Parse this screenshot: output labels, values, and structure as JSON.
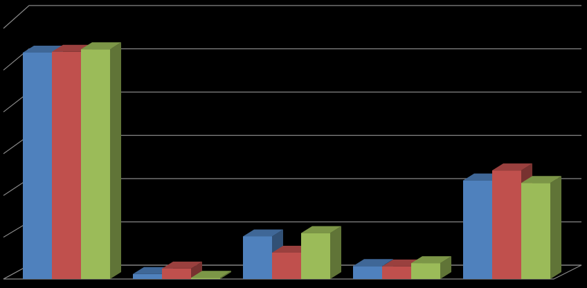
{
  "chart_data": {
    "type": "bar3d",
    "categories": [
      null,
      null,
      null,
      null,
      null
    ],
    "series": [
      {
        "color": "#4f81bd",
        "values": [
          5.42,
          0.12,
          1.02,
          0.31,
          2.36
        ]
      },
      {
        "color": "#c0504d",
        "values": [
          5.44,
          0.25,
          0.63,
          0.3,
          2.6
        ]
      },
      {
        "color": "#9bbb59",
        "values": [
          5.5,
          0.03,
          1.1,
          0.38,
          2.3
        ]
      }
    ],
    "ylim": [
      0,
      6
    ],
    "yticks": [
      0,
      1,
      2,
      3,
      4,
      5,
      6
    ],
    "grid": true
  }
}
